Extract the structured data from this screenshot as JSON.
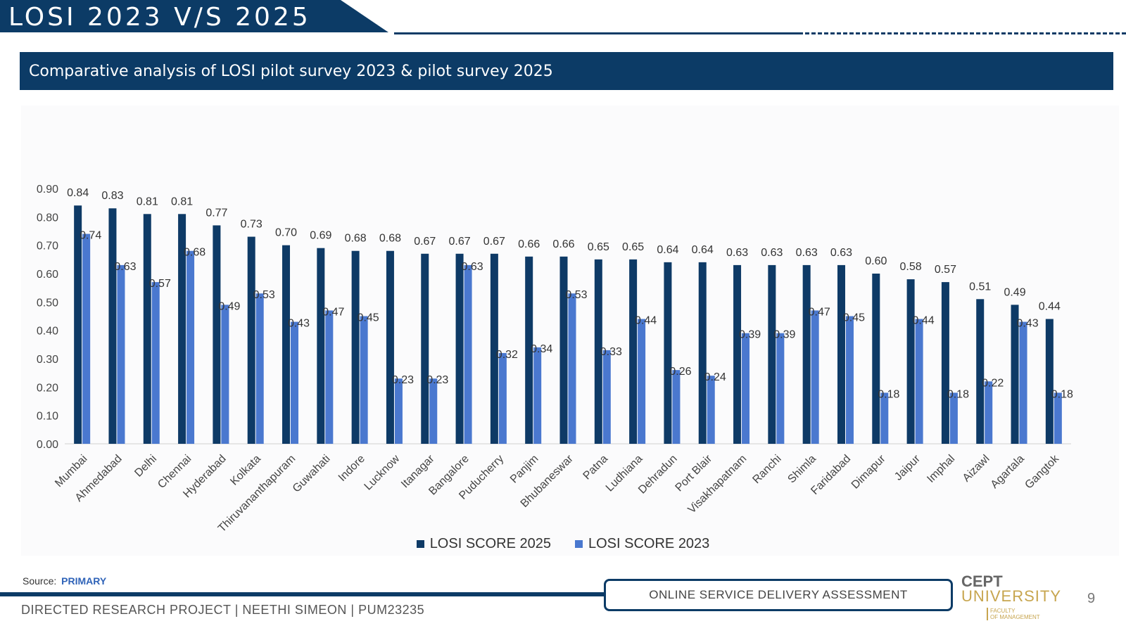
{
  "header": {
    "title": "LOSI 2023 V/S 2025"
  },
  "subtitle": "Comparative analysis of LOSI pilot survey 2023 & pilot survey 2025",
  "colors": {
    "navy": "#0c3b66",
    "series_2025": "#0e3a66",
    "series_2023": "#4a78cf"
  },
  "chart_data": {
    "type": "bar",
    "title": "",
    "xlabel": "",
    "ylabel": "",
    "ylim": [
      0,
      0.9
    ],
    "yticks": [
      "0.00",
      "0.10",
      "0.20",
      "0.30",
      "0.40",
      "0.50",
      "0.60",
      "0.70",
      "0.80",
      "0.90"
    ],
    "grid": false,
    "legend_position": "bottom",
    "categories": [
      "Mumbai",
      "Ahmedabad",
      "Delhi",
      "Chennai",
      "Hyderabad",
      "Kolkata",
      "Thiruvananthapuram",
      "Guwahati",
      "Indore",
      "Lucknow",
      "Itanagar",
      "Bangalore",
      "Puducherry",
      "Panjim",
      "Bhubaneswar",
      "Patna",
      "Ludhiana",
      "Dehradun",
      "Port Blair",
      "Visakhapatnam",
      "Ranchi",
      "Shimla",
      "Faridabad",
      "Dimapur",
      "Jaipur",
      "Imphal",
      "Aizawl",
      "Agartala",
      "Gangtok"
    ],
    "series": [
      {
        "name": "LOSI SCORE 2025",
        "color": "#0e3a66",
        "values": [
          0.84,
          0.83,
          0.81,
          0.81,
          0.77,
          0.73,
          0.7,
          0.69,
          0.68,
          0.68,
          0.67,
          0.67,
          0.67,
          0.66,
          0.66,
          0.65,
          0.65,
          0.64,
          0.64,
          0.63,
          0.63,
          0.63,
          0.63,
          0.6,
          0.58,
          0.57,
          0.51,
          0.49,
          0.44
        ]
      },
      {
        "name": "LOSI SCORE 2023",
        "color": "#4a78cf",
        "values": [
          0.74,
          0.63,
          0.57,
          0.68,
          0.49,
          0.53,
          0.43,
          0.47,
          0.45,
          0.23,
          0.23,
          0.63,
          0.32,
          0.34,
          0.53,
          0.33,
          0.44,
          0.26,
          0.24,
          0.39,
          0.39,
          0.47,
          0.45,
          0.18,
          0.44,
          0.18,
          0.22,
          0.43,
          0.18
        ]
      }
    ]
  },
  "source": {
    "label": "Source:",
    "value": "PRIMARY"
  },
  "footer": {
    "project_text": "DIRECTED RESEARCH PROJECT | NEETHI SIMEON | PUM23235",
    "box_label": "ONLINE SERVICE DELIVERY ASSESSMENT",
    "logo_line1": "CEPT",
    "logo_line2": "UNIVERSITY",
    "logo_line3": "FACULTY",
    "logo_line4": "OF MANAGEMENT",
    "page_number": "9"
  }
}
